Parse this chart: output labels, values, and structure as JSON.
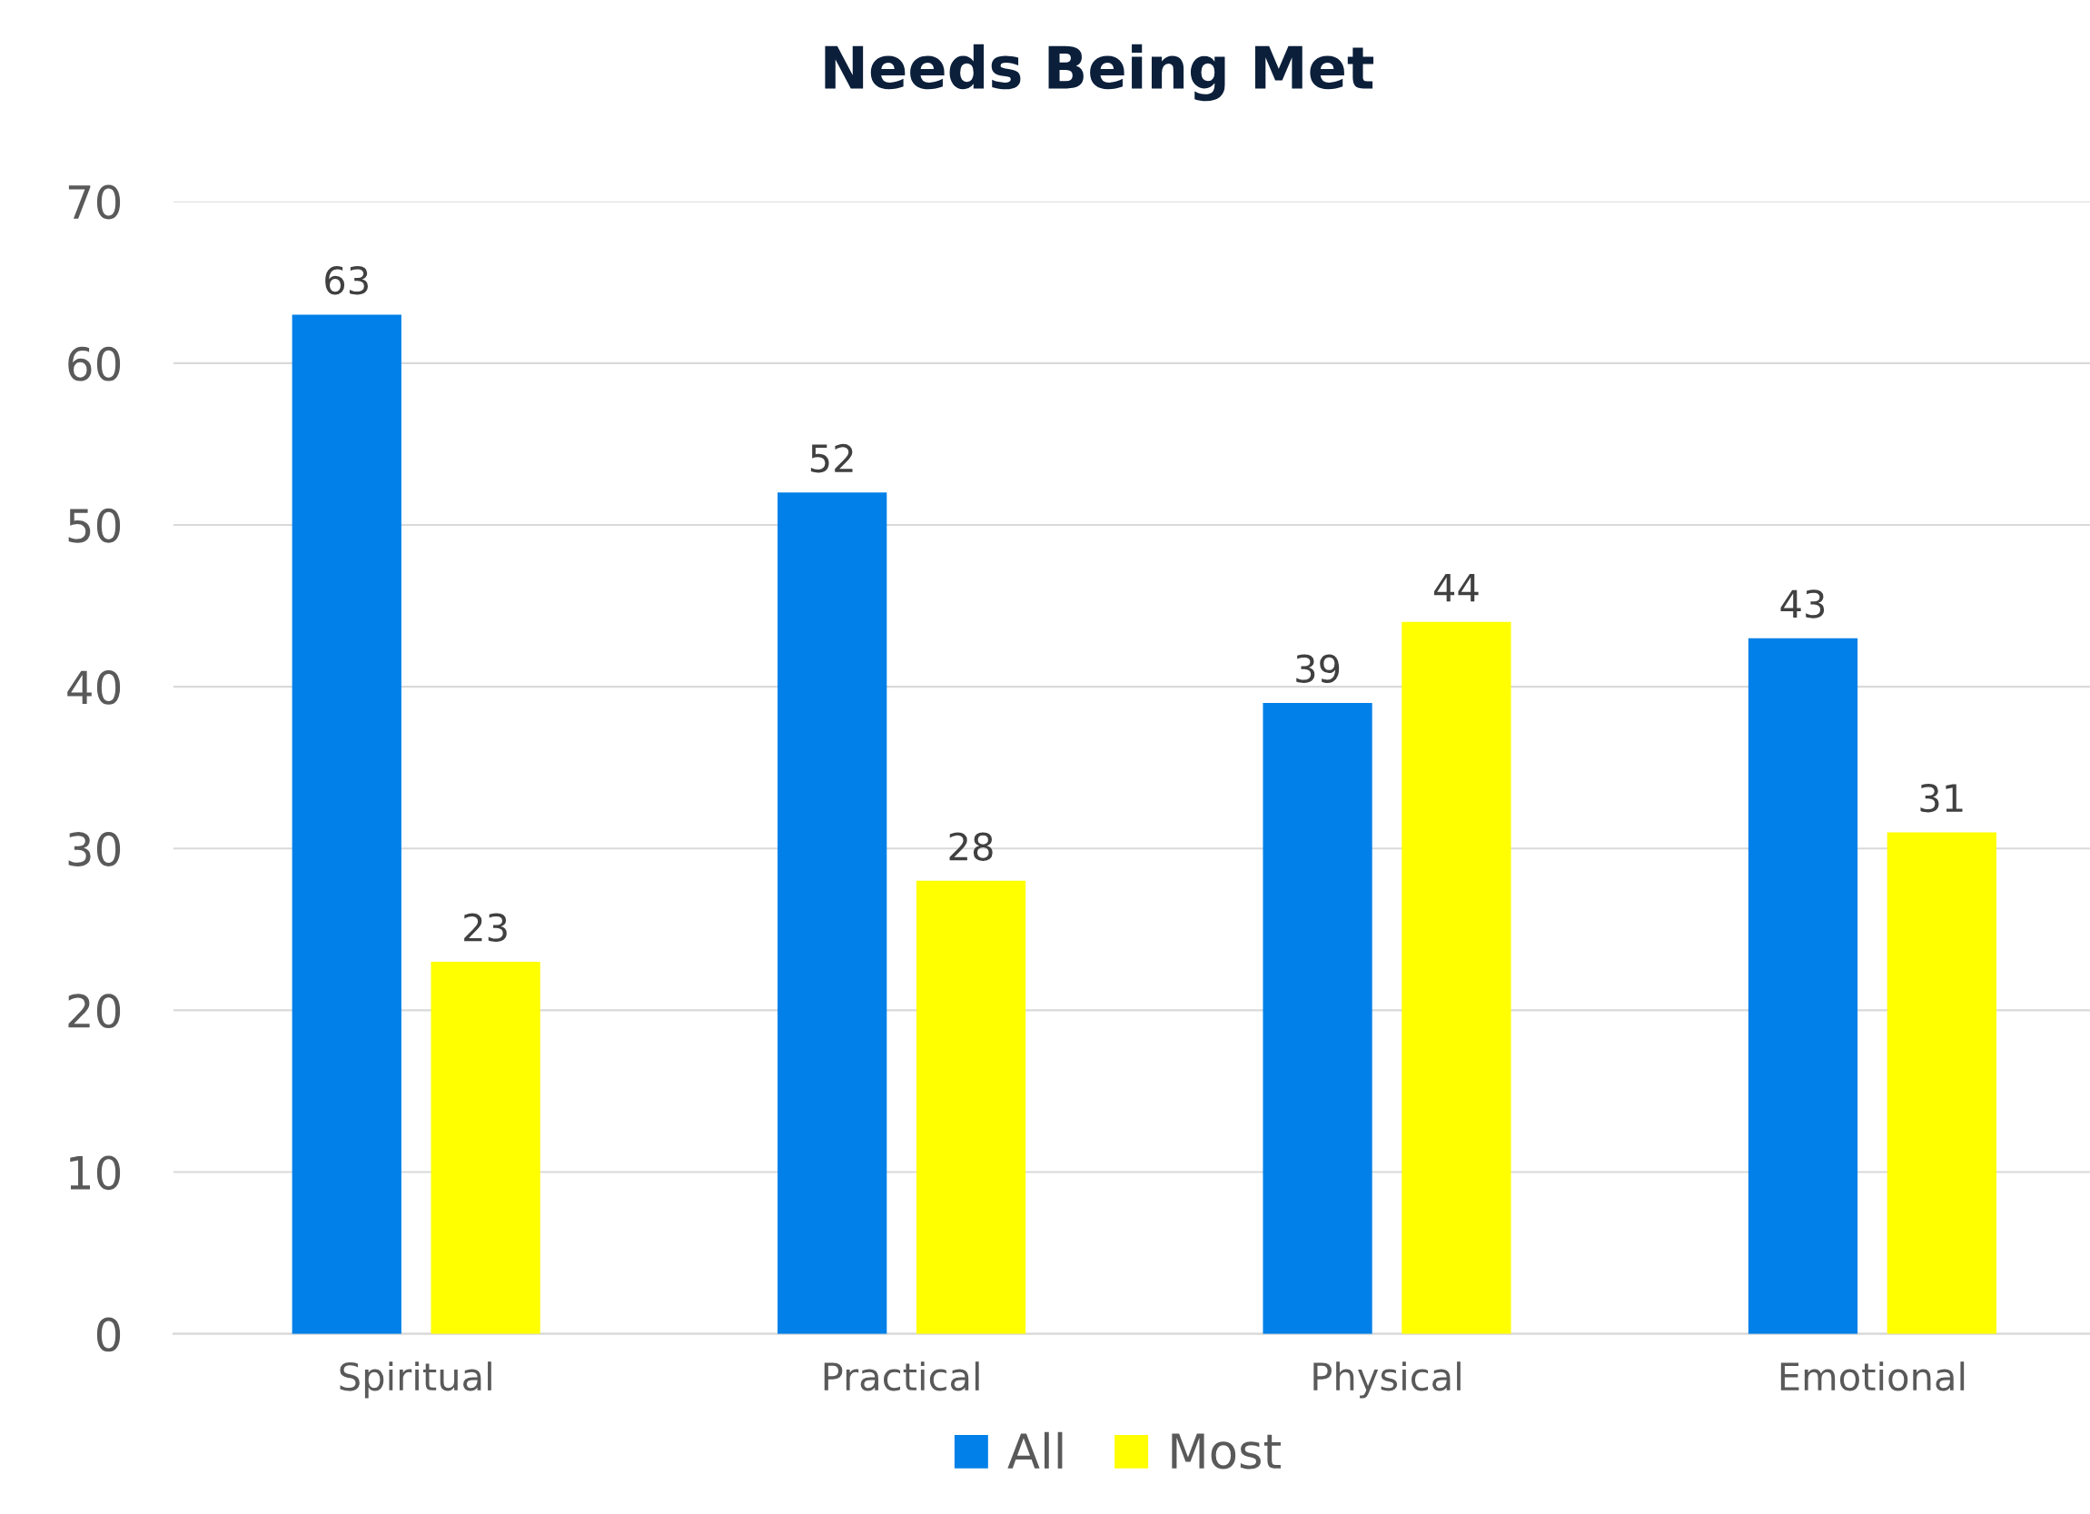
{
  "chart_data": {
    "type": "bar",
    "title": "Needs Being Met",
    "categories": [
      "Spiritual",
      "Practical",
      "Physical",
      "Emotional"
    ],
    "series": [
      {
        "name": "All",
        "color": "#0080e8",
        "values": [
          63,
          52,
          39,
          43
        ]
      },
      {
        "name": "Most",
        "color": "#ffff00",
        "values": [
          23,
          28,
          44,
          31
        ]
      }
    ],
    "ylim": [
      0,
      70
    ],
    "yticks": [
      0,
      10,
      20,
      30,
      40,
      50,
      60,
      70
    ],
    "grid": "y",
    "legend": "bottom",
    "data_labels": true
  }
}
